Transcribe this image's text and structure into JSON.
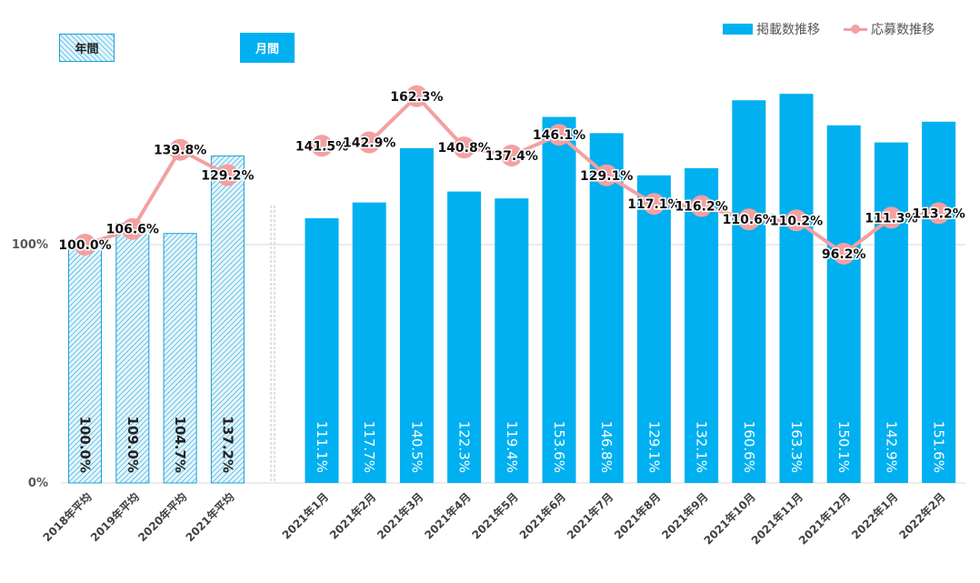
{
  "toggle": {
    "annual_label": "年間",
    "monthly_label": "月間"
  },
  "legend": {
    "bar_label": "掲載数推移",
    "line_label": "応募数推移"
  },
  "colors": {
    "bar": "#00b0f0",
    "line": "#f4a0a0",
    "hatch_fill": "#e6f6fd",
    "hatch_stroke": "#1aa0d8",
    "grid": "#d9d9d9",
    "separator": "#bfbfbf"
  },
  "chart_data": {
    "type": "bar",
    "y_ticks": [
      "100%",
      "0%"
    ],
    "y_tick_values": [
      100,
      0
    ],
    "ylim": [
      0,
      100
    ],
    "grid": true,
    "legend_position": "top-right",
    "annual": {
      "categories": [
        "2018年平均",
        "2019年平均",
        "2020年平均",
        "2021年平均"
      ],
      "bar_values": [
        100.0,
        109.0,
        104.7,
        137.2
      ],
      "bar_labels": [
        "100.0%",
        "109.0%",
        "104.7%",
        "137.2%"
      ],
      "line_values": [
        100.0,
        106.6,
        139.8,
        129.2
      ],
      "line_labels": [
        "100.0%",
        "106.6%",
        "139.8%",
        "129.2%"
      ]
    },
    "monthly": {
      "categories": [
        "2021年1月",
        "2021年2月",
        "2021年3月",
        "2021年4月",
        "2021年5月",
        "2021年6月",
        "2021年7月",
        "2021年8月",
        "2021年9月",
        "2021年10月",
        "2021年11月",
        "2021年12月",
        "2022年1月",
        "2022年2月"
      ],
      "bar_values": [
        111.1,
        117.7,
        140.5,
        122.3,
        119.4,
        153.6,
        146.8,
        129.1,
        132.1,
        160.6,
        163.3,
        150.1,
        142.9,
        151.6
      ],
      "bar_labels": [
        "111.1%",
        "117.7%",
        "140.5%",
        "122.3%",
        "119.4%",
        "153.6%",
        "146.8%",
        "129.1%",
        "132.1%",
        "160.6%",
        "163.3%",
        "150.1%",
        "142.9%",
        "151.6%"
      ],
      "line_values": [
        141.5,
        142.9,
        162.3,
        140.8,
        137.4,
        146.1,
        129.1,
        117.1,
        116.2,
        110.6,
        110.2,
        96.2,
        111.3,
        113.2
      ],
      "line_labels": [
        "141.5%",
        "142.9%",
        "162.3%",
        "140.8%",
        "137.4%",
        "146.1%",
        "129.1%",
        "117.1%",
        "116.2%",
        "110.6%",
        "110.2%",
        "96.2%",
        "111.3%",
        "113.2%"
      ]
    }
  }
}
